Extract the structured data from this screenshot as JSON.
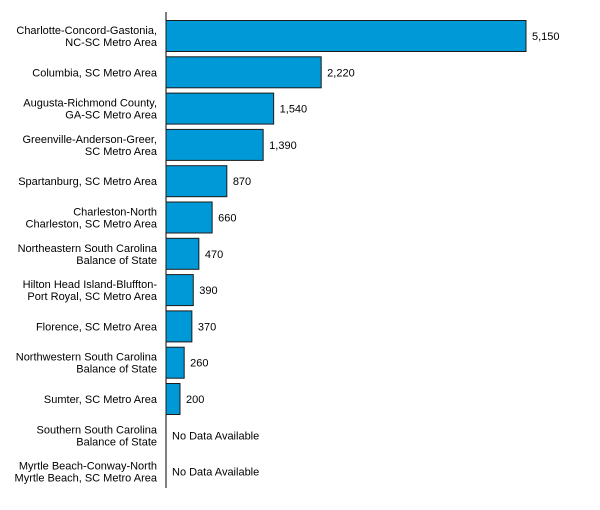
{
  "chart_data": {
    "type": "bar",
    "orientation": "horizontal",
    "categories": [
      [
        "Charlotte-Concord-Gastonia,",
        "NC-SC Metro Area"
      ],
      [
        "Columbia, SC Metro Area"
      ],
      [
        "Augusta-Richmond County,",
        "GA-SC Metro Area"
      ],
      [
        "Greenville-Anderson-Greer,",
        "SC Metro Area"
      ],
      [
        "Spartanburg, SC Metro Area"
      ],
      [
        "Charleston-North",
        "Charleston, SC Metro Area"
      ],
      [
        "Northeastern South Carolina",
        "Balance of State"
      ],
      [
        "Hilton Head Island-Bluffton-",
        "Port Royal, SC Metro Area"
      ],
      [
        "Florence, SC Metro Area"
      ],
      [
        "Northwestern South Carolina",
        "Balance of State"
      ],
      [
        "Sumter, SC Metro Area"
      ],
      [
        "Southern South Carolina",
        "Balance of State"
      ],
      [
        "Myrtle Beach-Conway-North",
        "Myrtle Beach, SC Metro Area"
      ]
    ],
    "values": [
      5150,
      2220,
      1540,
      1390,
      870,
      660,
      470,
      390,
      370,
      260,
      200,
      null,
      null
    ],
    "value_labels": [
      "5,150",
      "2,220",
      "1,540",
      "1,390",
      "870",
      "660",
      "470",
      "390",
      "370",
      "260",
      "200",
      "No Data Available",
      "No Data Available"
    ],
    "xlim": [
      0,
      5150
    ],
    "bar_color": "#0099d8",
    "grid": false,
    "legend": "none"
  }
}
